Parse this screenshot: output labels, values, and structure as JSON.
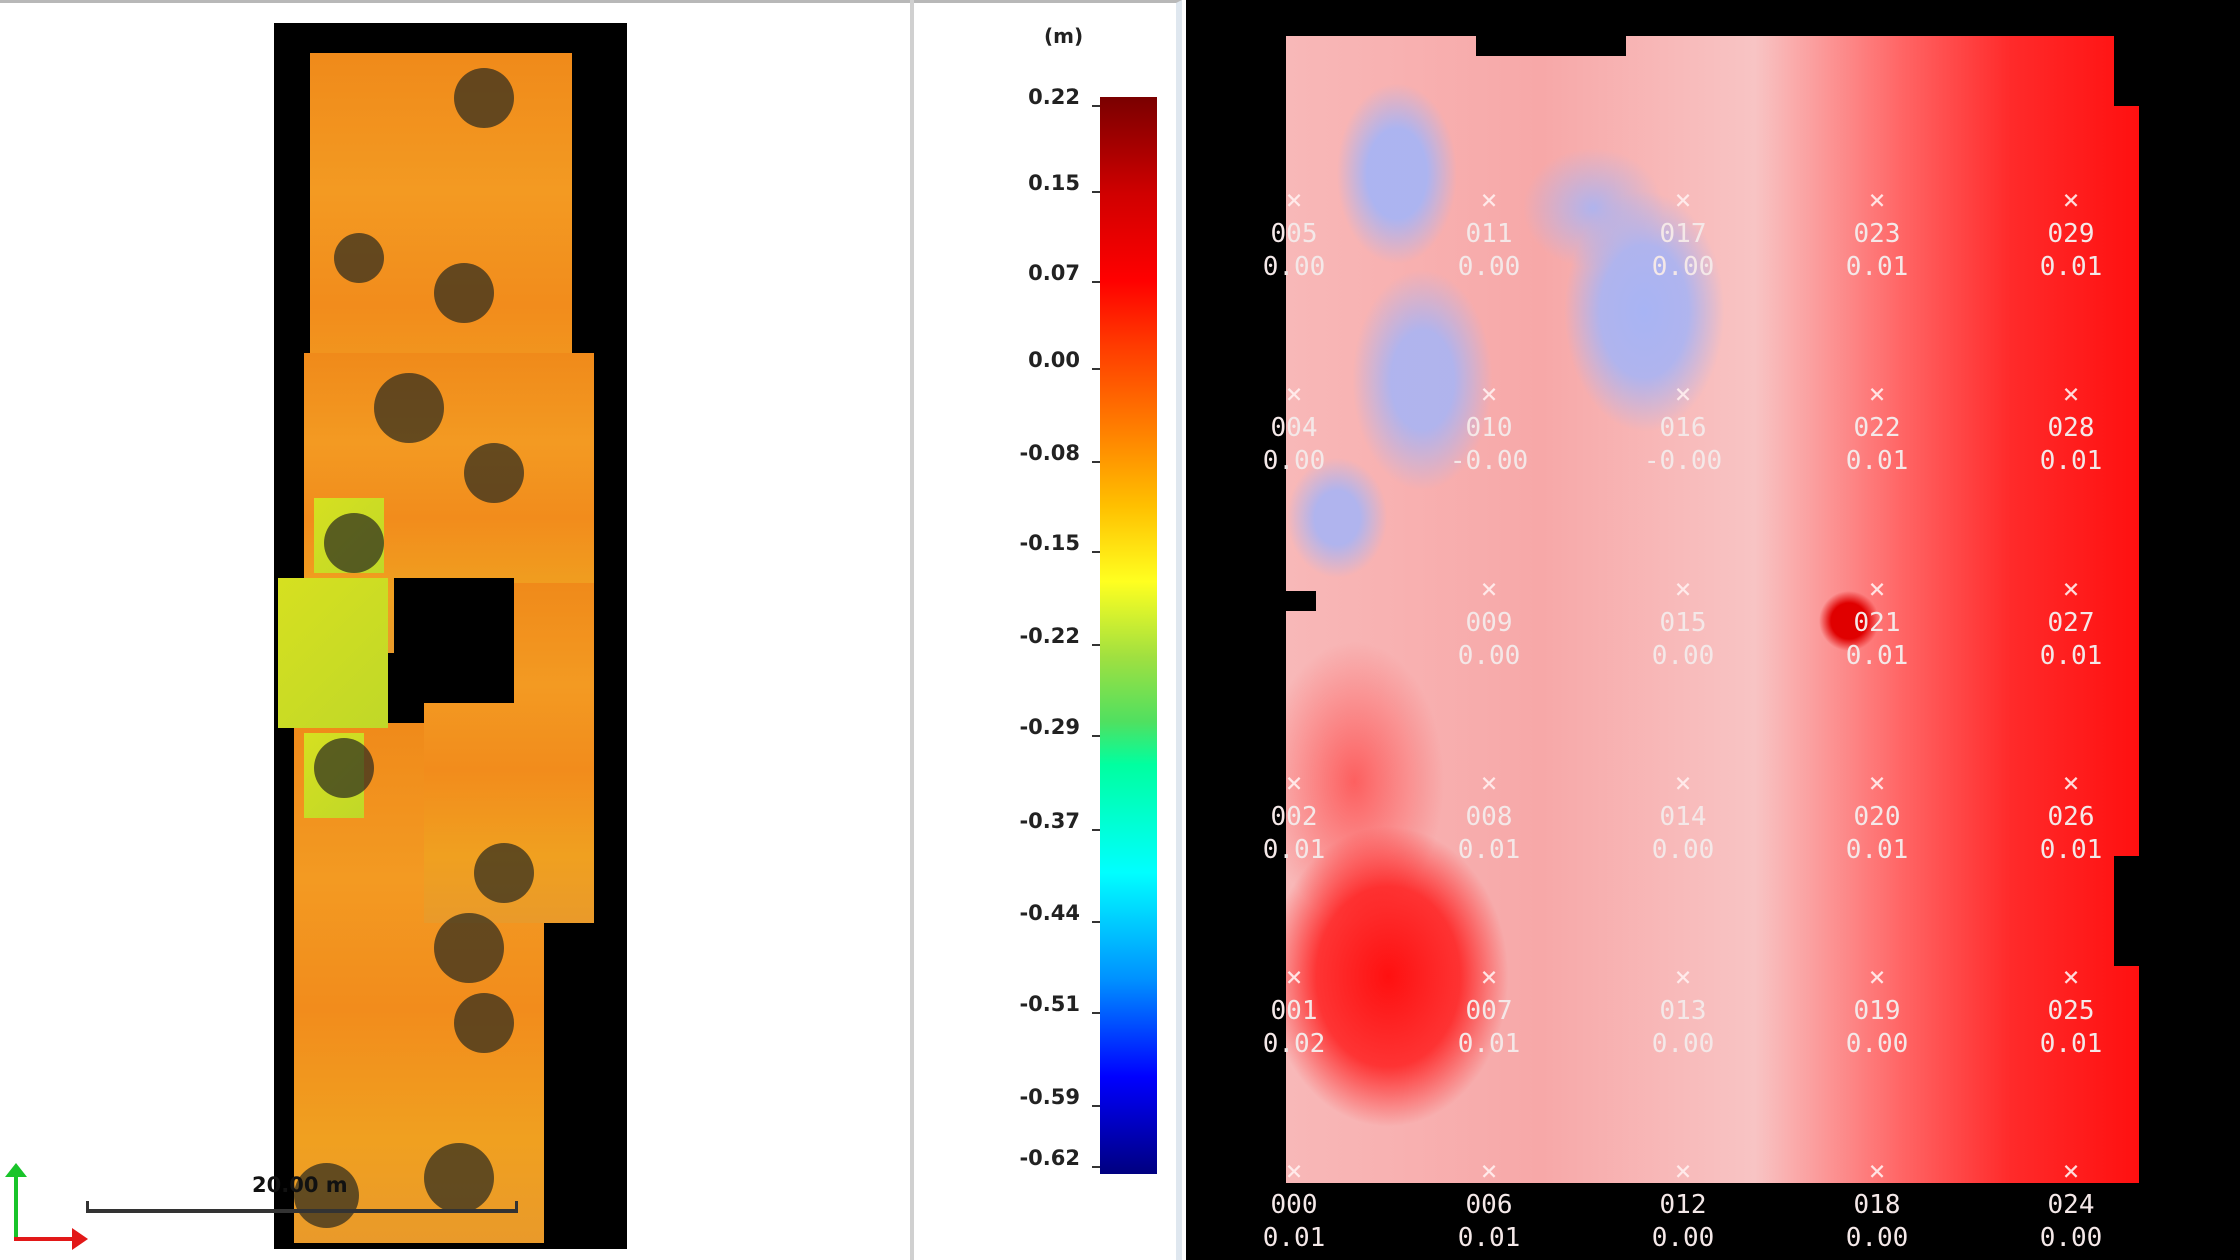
{
  "left_panel": {
    "scale_label": "20.00 m"
  },
  "legend": {
    "unit": "(m)",
    "ticks": [
      "0.22",
      "0.15",
      "0.07",
      "0.00",
      "-0.08",
      "-0.15",
      "-0.22",
      "-0.29",
      "-0.37",
      "-0.44",
      "-0.51",
      "-0.59",
      "-0.62"
    ],
    "colormap": [
      "#7a0000",
      "#ff0000",
      "#ff8000",
      "#ffff20",
      "#00ffa0",
      "#00ffff",
      "#0000ff",
      "#000080"
    ]
  },
  "heatmap": {
    "colors": {
      "positive": "#ff1010",
      "neutral": "#f8c4c4",
      "negative": "#a8b4f4"
    },
    "points": [
      {
        "id": "005",
        "value": "0.00",
        "col": 0,
        "row": 5
      },
      {
        "id": "011",
        "value": "0.00",
        "col": 1,
        "row": 5
      },
      {
        "id": "017",
        "value": "0.00",
        "col": 2,
        "row": 5
      },
      {
        "id": "023",
        "value": "0.01",
        "col": 3,
        "row": 5
      },
      {
        "id": "029",
        "value": "0.01",
        "col": 4,
        "row": 5
      },
      {
        "id": "004",
        "value": "0.00",
        "col": 0,
        "row": 4
      },
      {
        "id": "010",
        "value": "-0.00",
        "col": 1,
        "row": 4
      },
      {
        "id": "016",
        "value": "-0.00",
        "col": 2,
        "row": 4
      },
      {
        "id": "022",
        "value": "0.01",
        "col": 3,
        "row": 4
      },
      {
        "id": "028",
        "value": "0.01",
        "col": 4,
        "row": 4
      },
      {
        "id": "009",
        "value": "0.00",
        "col": 1,
        "row": 3
      },
      {
        "id": "015",
        "value": "0.00",
        "col": 2,
        "row": 3
      },
      {
        "id": "021",
        "value": "0.01",
        "col": 3,
        "row": 3
      },
      {
        "id": "027",
        "value": "0.01",
        "col": 4,
        "row": 3
      },
      {
        "id": "002",
        "value": "0.01",
        "col": 0,
        "row": 2
      },
      {
        "id": "008",
        "value": "0.01",
        "col": 1,
        "row": 2
      },
      {
        "id": "014",
        "value": "0.00",
        "col": 2,
        "row": 2
      },
      {
        "id": "020",
        "value": "0.01",
        "col": 3,
        "row": 2
      },
      {
        "id": "026",
        "value": "0.01",
        "col": 4,
        "row": 2
      },
      {
        "id": "001",
        "value": "0.02",
        "col": 0,
        "row": 1
      },
      {
        "id": "007",
        "value": "0.01",
        "col": 1,
        "row": 1
      },
      {
        "id": "013",
        "value": "0.00",
        "col": 2,
        "row": 1
      },
      {
        "id": "019",
        "value": "0.00",
        "col": 3,
        "row": 1
      },
      {
        "id": "025",
        "value": "0.01",
        "col": 4,
        "row": 1
      },
      {
        "id": "000",
        "value": "0.01",
        "col": 0,
        "row": 0
      },
      {
        "id": "006",
        "value": "0.01",
        "col": 1,
        "row": 0
      },
      {
        "id": "012",
        "value": "0.00",
        "col": 2,
        "row": 0
      },
      {
        "id": "018",
        "value": "0.00",
        "col": 3,
        "row": 0
      },
      {
        "id": "024",
        "value": "0.00",
        "col": 4,
        "row": 0
      }
    ]
  }
}
